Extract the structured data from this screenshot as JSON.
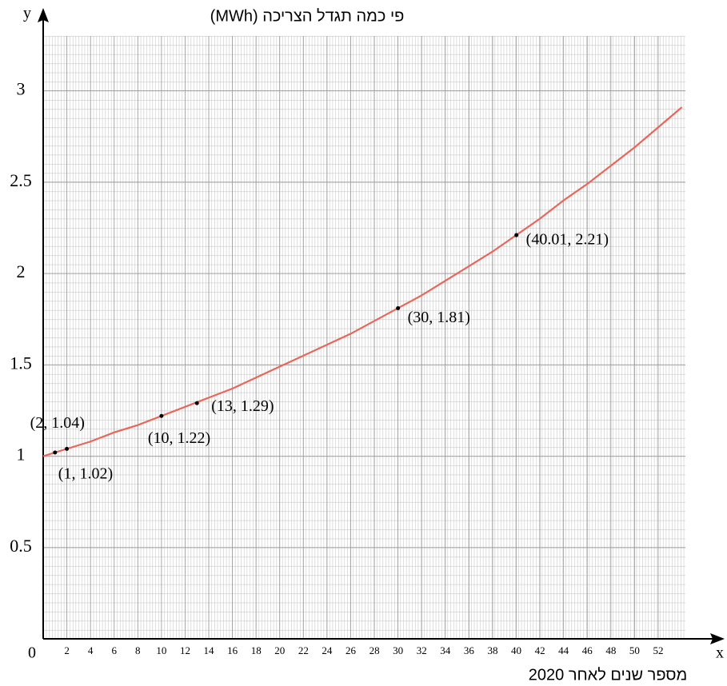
{
  "chart_data": {
    "type": "line",
    "y_label": "פי כמה תגדל הצריכה (MWh)",
    "x_label": "מספר שנים לאחר 2020",
    "x_axis_name": "x",
    "y_axis_name": "y",
    "xlim": [
      0,
      54.3
    ],
    "ylim": [
      0,
      3.3
    ],
    "xticks": [
      0,
      2,
      4,
      6,
      8,
      10,
      12,
      14,
      16,
      18,
      20,
      22,
      24,
      26,
      28,
      30,
      32,
      34,
      36,
      38,
      40,
      42,
      44,
      46,
      48,
      50,
      52
    ],
    "yticks": [
      0.5,
      1,
      1.5,
      2,
      2.5,
      3
    ],
    "grid": true,
    "curve": {
      "color": "#e8665a",
      "x": [
        0,
        2,
        4,
        6,
        8,
        10,
        12,
        14,
        16,
        18,
        20,
        22,
        24,
        26,
        28,
        30,
        32,
        34,
        36,
        38,
        40,
        42,
        44,
        46,
        48,
        50,
        52,
        54
      ],
      "values": [
        1,
        1.04,
        1.08,
        1.13,
        1.17,
        1.22,
        1.27,
        1.32,
        1.37,
        1.43,
        1.49,
        1.55,
        1.61,
        1.67,
        1.74,
        1.81,
        1.88,
        1.96,
        2.04,
        2.12,
        2.21,
        2.3,
        2.4,
        2.49,
        2.59,
        2.69,
        2.8,
        2.91
      ]
    },
    "points": {
      "color": "#000000",
      "x": [
        1,
        2,
        10,
        13,
        30,
        40.01
      ],
      "values": [
        1.02,
        1.04,
        1.22,
        1.29,
        1.81,
        2.21
      ],
      "value_labels": [
        "(1, 1.02)",
        "(2, 1.04)",
        "(10, 1.22)",
        "(13, 1.29)",
        "(30, 1.81)",
        "(40.01, 2.21)"
      ]
    }
  }
}
